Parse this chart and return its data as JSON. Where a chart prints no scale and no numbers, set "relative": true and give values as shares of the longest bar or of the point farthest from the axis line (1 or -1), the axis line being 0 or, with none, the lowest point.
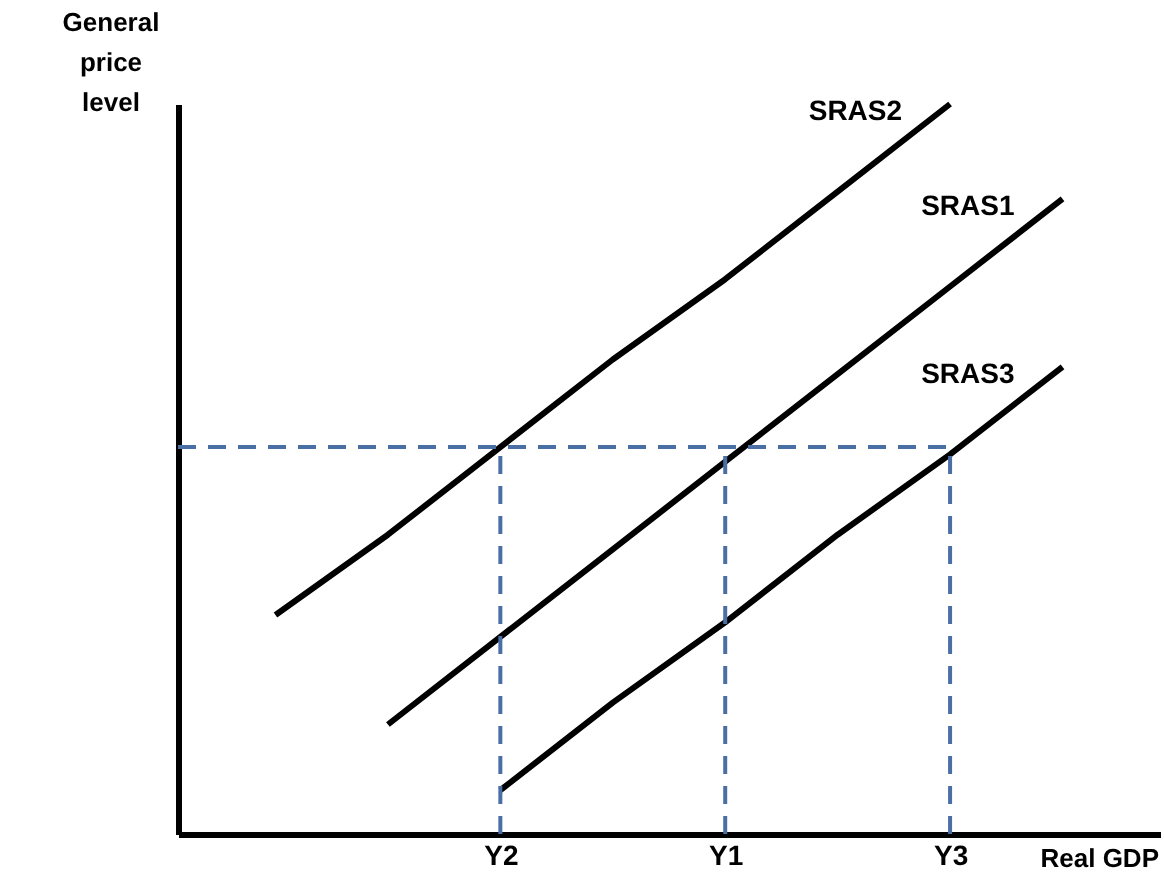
{
  "chart_data": {
    "type": "line",
    "relative": true,
    "xlabel": "Real GDP",
    "ylabel": "General price level",
    "categories": [
      null,
      null,
      "Y2",
      null,
      "Y1",
      null,
      "Y3",
      null
    ],
    "series": [
      {
        "name": "SRAS2",
        "color": "#000000",
        "values": [
          0.3,
          0.41,
          0.53,
          0.65,
          0.76,
          0.88,
          1,
          null
        ]
      },
      {
        "name": "SRAS1",
        "color": "#000000",
        "values": [
          null,
          0.15,
          0.27,
          0.39,
          0.51,
          0.63,
          0.75,
          0.87
        ]
      },
      {
        "name": "SRAS3",
        "color": "#000000",
        "values": [
          null,
          null,
          0.06,
          0.18,
          0.29,
          0.41,
          0.52,
          0.64
        ]
      }
    ],
    "ref_lines": [
      {
        "axis": "y",
        "value": 0.53,
        "color": "#4a6fa5",
        "line_style": "dashed"
      },
      {
        "axis": "x",
        "value": "Y2",
        "color": "#4a6fa5",
        "line_style": "dashed"
      },
      {
        "axis": "x",
        "value": "Y1",
        "color": "#4a6fa5",
        "line_style": "dashed"
      },
      {
        "axis": "x",
        "value": "Y3",
        "color": "#4a6fa5",
        "line_style": "dashed"
      }
    ],
    "line_style": "solid",
    "marker": "none",
    "grid": false
  }
}
